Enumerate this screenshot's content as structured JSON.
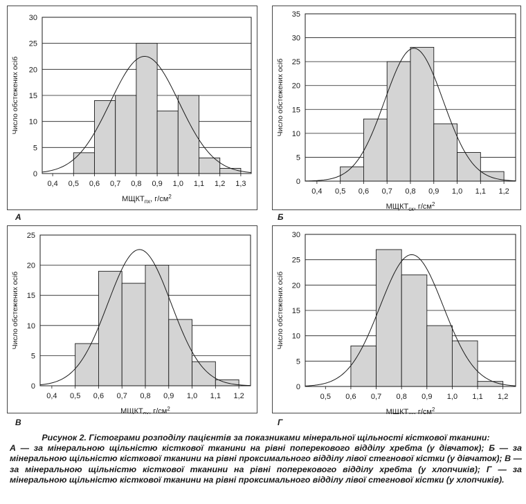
{
  "chart_data": [
    {
      "type": "bar",
      "panel_label": "А",
      "title": "",
      "xlabel_main": "МЩКТ",
      "xlabel_sub": "пх",
      "xlabel_unit": ", г/см",
      "xlabel_sup": "2",
      "ylabel": "Число обстежених осіб",
      "xlim": [
        0.35,
        1.35
      ],
      "ylim": [
        0,
        30
      ],
      "x_ticks": [
        "0,4",
        "0,5",
        "0,6",
        "0,7",
        "0,8",
        "0,9",
        "1,0",
        "1,1",
        "1,2",
        "1,3"
      ],
      "x_tick_values": [
        0.4,
        0.5,
        0.6,
        0.7,
        0.8,
        0.9,
        1.0,
        1.1,
        1.2,
        1.3
      ],
      "y_ticks": [
        0,
        5,
        10,
        15,
        20,
        25,
        30
      ],
      "bins": [
        [
          0.5,
          0.6
        ],
        [
          0.6,
          0.7
        ],
        [
          0.7,
          0.8
        ],
        [
          0.8,
          0.9
        ],
        [
          0.9,
          1.0
        ],
        [
          1.0,
          1.1
        ],
        [
          1.1,
          1.2
        ],
        [
          1.2,
          1.3
        ]
      ],
      "values": [
        4,
        14,
        15,
        25,
        12,
        15,
        3,
        1
      ],
      "normal_curve": {
        "mean": 0.84,
        "peak": 22.5,
        "sd": 0.165
      },
      "grid": "horizontal"
    },
    {
      "type": "bar",
      "panel_label": "Б",
      "title": "",
      "xlabel_main": "МЩКТ",
      "xlabel_sub": "ск",
      "xlabel_unit": ", г/см",
      "xlabel_sup": "2",
      "ylabel": "Число обстежених осіб",
      "xlim": [
        0.35,
        1.25
      ],
      "ylim": [
        0,
        35
      ],
      "x_ticks": [
        "0,4",
        "0,5",
        "0,6",
        "0,7",
        "0,8",
        "0,9",
        "1,0",
        "1,1",
        "1,2"
      ],
      "x_tick_values": [
        0.4,
        0.5,
        0.6,
        0.7,
        0.8,
        0.9,
        1.0,
        1.1,
        1.2
      ],
      "y_ticks": [
        0,
        5,
        10,
        15,
        20,
        25,
        30,
        35
      ],
      "bins": [
        [
          0.5,
          0.6
        ],
        [
          0.6,
          0.7
        ],
        [
          0.7,
          0.8
        ],
        [
          0.8,
          0.9
        ],
        [
          0.9,
          1.0
        ],
        [
          1.0,
          1.1
        ],
        [
          1.1,
          1.2
        ]
      ],
      "values": [
        3,
        13,
        25,
        28,
        12,
        6,
        2
      ],
      "normal_curve": {
        "mean": 0.815,
        "peak": 27.8,
        "sd": 0.125
      },
      "grid": "horizontal"
    },
    {
      "type": "bar",
      "panel_label": "В",
      "title": "",
      "xlabel_main": "МЩКТ",
      "xlabel_sub": "пх",
      "xlabel_unit": ", г/см",
      "xlabel_sup": "2",
      "ylabel": "Число обстежених осіб",
      "xlim": [
        0.35,
        1.25
      ],
      "ylim": [
        0,
        25
      ],
      "x_ticks": [
        "0,4",
        "0,5",
        "0,6",
        "0,7",
        "0,8",
        "0,9",
        "1,0",
        "1,1",
        "1,2"
      ],
      "x_tick_values": [
        0.4,
        0.5,
        0.6,
        0.7,
        0.8,
        0.9,
        1.0,
        1.1,
        1.2
      ],
      "y_ticks": [
        0,
        5,
        10,
        15,
        20,
        25
      ],
      "bins": [
        [
          0.5,
          0.6
        ],
        [
          0.6,
          0.7
        ],
        [
          0.7,
          0.8
        ],
        [
          0.8,
          0.9
        ],
        [
          0.9,
          1.0
        ],
        [
          1.0,
          1.1
        ],
        [
          1.1,
          1.2
        ]
      ],
      "values": [
        7,
        19,
        17,
        20,
        11,
        4,
        1
      ],
      "normal_curve": {
        "mean": 0.775,
        "peak": 22.6,
        "sd": 0.135
      },
      "grid": "horizontal"
    },
    {
      "type": "bar",
      "panel_label": "Г",
      "title": "",
      "xlabel_main": "МЩКТ",
      "xlabel_sub": "ск",
      "xlabel_unit": ", г/см",
      "xlabel_sup": "2",
      "ylabel": "Число обстежених осіб",
      "xlim": [
        0.42,
        1.25
      ],
      "ylim": [
        0,
        30
      ],
      "x_ticks": [
        "0,5",
        "0,6",
        "0,7",
        "0,8",
        "0,9",
        "1,0",
        "1,1",
        "1,2"
      ],
      "x_tick_values": [
        0.5,
        0.6,
        0.7,
        0.8,
        0.9,
        1.0,
        1.1,
        1.2
      ],
      "y_ticks": [
        0,
        5,
        10,
        15,
        20,
        25,
        30
      ],
      "bins": [
        [
          0.6,
          0.7
        ],
        [
          0.7,
          0.8
        ],
        [
          0.8,
          0.9
        ],
        [
          0.9,
          1.0
        ],
        [
          1.0,
          1.1
        ],
        [
          1.1,
          1.2
        ]
      ],
      "values": [
        8,
        27,
        22,
        12,
        9,
        1
      ],
      "normal_curve": {
        "mean": 0.84,
        "peak": 26.0,
        "sd": 0.125
      },
      "grid": "horizontal"
    }
  ],
  "caption": {
    "title": "Рисунок 2. Гістограми розподілу пацієнтів за показниками мінеральної щільності кісткової тканини:",
    "body": "А — за мінеральною щільністю кісткової тканини на рівні поперекового відділу хребта (у дівчаток); Б — за мінеральною щільністю кісткової тканини на рівні проксимального відділу лівої стегнової кістки (у дівчаток); В — за мінеральною щільністю кісткової тканини на рівні поперекового відділу хребта (у хлопчиків); Г — за мінеральною щільністю кісткової тканини на рівні проксимального відділу лівої стегнової кістки (у хлопчиків)."
  },
  "colors": {
    "bar_fill": "#d4d4d4",
    "bar_stroke": "#1a1a1a",
    "grid": "#1a1a1a",
    "curve": "#1a1a1a",
    "text": "#1a1a1a"
  }
}
